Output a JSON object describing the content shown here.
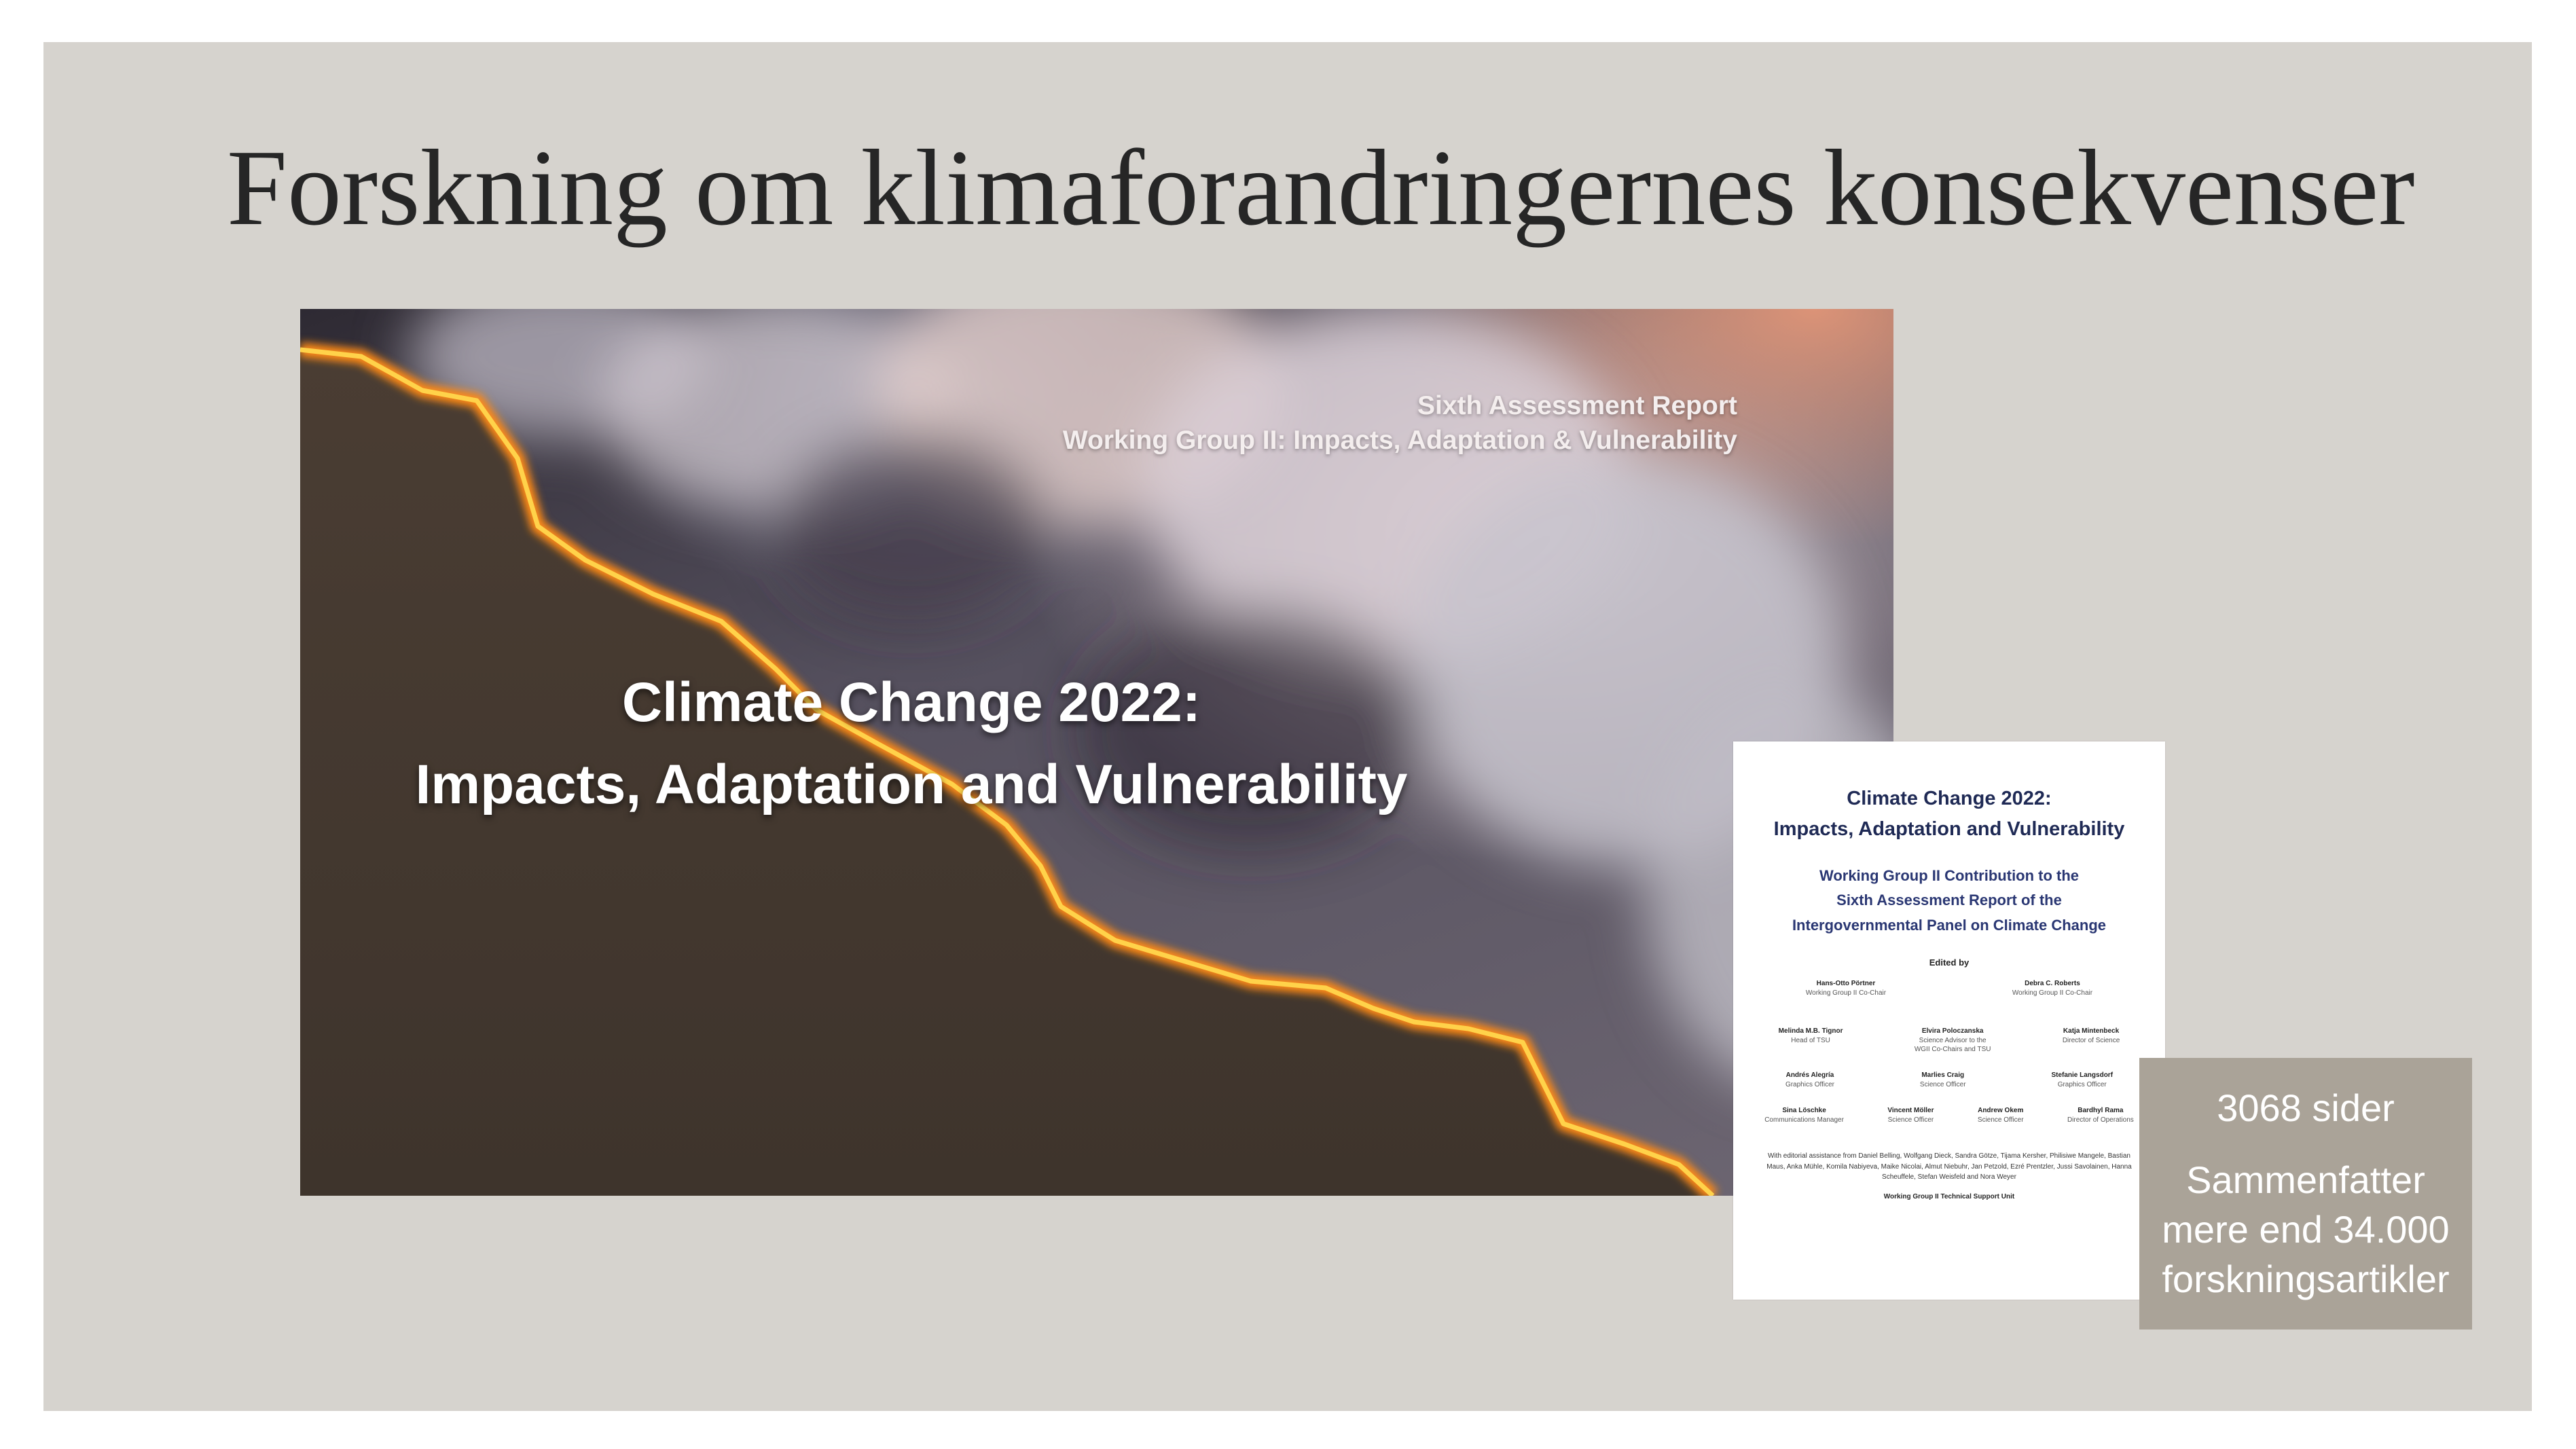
{
  "slide": {
    "title": "Forskning om klimaforandringernes konsekvenser"
  },
  "cover": {
    "subtitle_line1": "Sixth Assessment Report",
    "subtitle_line2": "Working Group II: Impacts, Adaptation & Vulnerability",
    "title_line1": "Climate Change 2022:",
    "title_line2": "Impacts, Adaptation and Vulnerability"
  },
  "title_page": {
    "title_line1": "Climate Change 2022:",
    "title_line2": "Impacts, Adaptation and Vulnerability",
    "contribution_line1": "Working Group II Contribution to the",
    "contribution_line2": "Sixth Assessment Report of the",
    "contribution_line3": "Intergovernmental Panel on Climate Change",
    "edited_by": "Edited by",
    "co_chairs": [
      {
        "name": "Hans-Otto Pörtner",
        "role": "Working Group II Co-Chair"
      },
      {
        "name": "Debra C. Roberts",
        "role": "Working Group II Co-Chair"
      }
    ],
    "row1": [
      {
        "name": "Melinda M.B. Tignor",
        "role": "Head of TSU"
      },
      {
        "name": "Elvira Poloczanska",
        "role": "Science Advisor to the",
        "role2": "WGII Co-Chairs and TSU"
      },
      {
        "name": "Katja Mintenbeck",
        "role": "Director of Science"
      }
    ],
    "row2": [
      {
        "name": "Andrés Alegría",
        "role": "Graphics Officer"
      },
      {
        "name": "Marlies Craig",
        "role": "Science Officer"
      },
      {
        "name": "Stefanie Langsdorf",
        "role": "Graphics Officer"
      }
    ],
    "row3": [
      {
        "name": "Sina Löschke",
        "role": "Communications Manager"
      },
      {
        "name": "Vincent Möller",
        "role": "Science Officer"
      },
      {
        "name": "Andrew Okem",
        "role": "Science Officer"
      },
      {
        "name": "Bardhyl Rama",
        "role": "Director of Operations"
      }
    ],
    "assistance": "With editorial assistance from Daniel Belling, Wolfgang Dieck, Sandra Götze, Tijama Kersher, Philisiwe Mangele, Bastian Maus, Anka Mühle, Komila Nabiyeva, Maike Nicolai, Almut Niebuhr, Jan Petzold, Ezré Prentzler, Jussi Savolainen, Hanna Scheuffele, Stefan Weisfeld and Nora Weyer",
    "tsu": "Working Group II Technical Support Unit"
  },
  "info_box": {
    "pages": "3068 sider",
    "desc_line1": "Sammenfatter",
    "desc_line2": "mere end 34.000",
    "desc_line3": "forskningsartikler"
  },
  "colors": {
    "slide_background": "#d6d3ce",
    "info_box_background": "#aaa398",
    "title_page_text": "#1f2a55",
    "fire": "#ff9a1c"
  }
}
